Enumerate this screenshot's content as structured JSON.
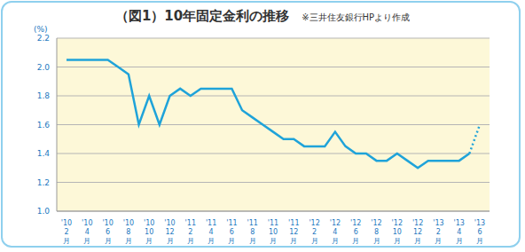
{
  "chart_data": {
    "type": "line",
    "title": "（図1）10年固定金利の推移",
    "subtitle": "※三井住友銀行HPより作成",
    "y_label": "(%)",
    "categories": [
      "'10 2月",
      null,
      "'10 4月",
      null,
      "'10 6月",
      null,
      "'10 8月",
      null,
      "'10 10月",
      null,
      "'10 12月",
      null,
      "'11 2月",
      null,
      "'11 4月",
      null,
      "'11 6月",
      null,
      "'11 8月",
      null,
      "'11 10月",
      null,
      "'11 12月",
      null,
      "'12 2月",
      null,
      "'12 4月",
      null,
      "'12 6月",
      null,
      "'12 8月",
      null,
      "'12 10月",
      null,
      "'12 12月",
      null,
      "'13 2月",
      null,
      "'13 4月",
      null,
      "'13 6月"
    ],
    "series": [
      {
        "color": "#1fa3d9",
        "line_style": "solid",
        "values": [
          2.05,
          2.05,
          2.05,
          2.05,
          2.05,
          2.0,
          1.95,
          1.6,
          1.8,
          1.6,
          1.8,
          1.85,
          1.8,
          1.85,
          1.85,
          1.85,
          1.85,
          1.7,
          1.65,
          1.6,
          1.55,
          1.5,
          1.5,
          1.45,
          1.45,
          1.45,
          1.55,
          1.45,
          1.4,
          1.4,
          1.35,
          1.35,
          1.4,
          1.35,
          1.3,
          1.35,
          1.35,
          1.35,
          1.35,
          1.4,
          null
        ]
      },
      {
        "color": "#1fa3d9",
        "line_style": "dotted",
        "values": [
          null,
          null,
          null,
          null,
          null,
          null,
          null,
          null,
          null,
          null,
          null,
          null,
          null,
          null,
          null,
          null,
          null,
          null,
          null,
          null,
          null,
          null,
          null,
          null,
          null,
          null,
          null,
          null,
          null,
          null,
          null,
          null,
          null,
          null,
          null,
          null,
          null,
          null,
          null,
          1.4,
          1.6
        ]
      }
    ],
    "ylim": [
      1.0,
      2.2
    ],
    "yticks": [
      {
        "value": 1.0,
        "label": "1.0"
      },
      1.2,
      1.4,
      1.6,
      1.8,
      {
        "value": 2.0,
        "label": "2.0"
      },
      2.2
    ],
    "grid": true
  }
}
